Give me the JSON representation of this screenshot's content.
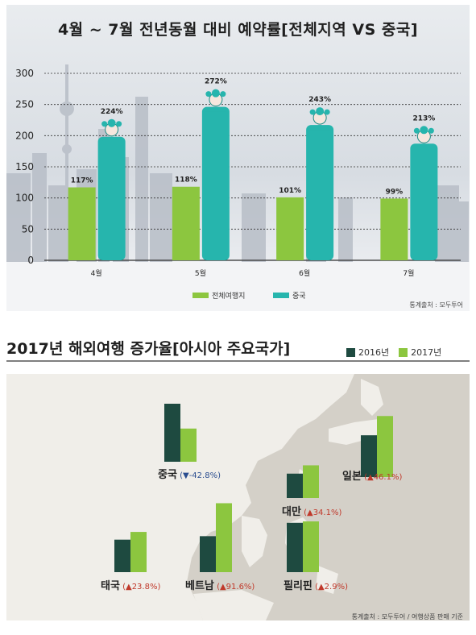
{
  "chart1": {
    "title": "4월 ~ 7월 전년동월 대비 예약률[전체지역 VS 중국]",
    "source": "통계출처 : 모두투어",
    "colors": {
      "all": "#8cc63f",
      "china": "#26b5ad"
    },
    "chart_data": {
      "type": "bar",
      "categories": [
        "4월",
        "5월",
        "6월",
        "7월"
      ],
      "series": [
        {
          "name": "전체여행지",
          "values": [
            117,
            118,
            101,
            99
          ],
          "labels": [
            "117%",
            "118%",
            "101%",
            "99%"
          ]
        },
        {
          "name": "중국",
          "values": [
            224,
            272,
            243,
            213
          ],
          "labels": [
            "224%",
            "272%",
            "243%",
            "213%"
          ]
        }
      ],
      "yticks": [
        "0",
        "50",
        "100",
        "150",
        "200",
        "250",
        "300"
      ],
      "ylim": [
        0,
        300
      ],
      "legend": "bottom"
    }
  },
  "chart2": {
    "title": "2017년 해외여행 증가율[아시아 주요국가]",
    "source": "통계출처 : 모두투어 / 여행상품 판매 기준",
    "colors": {
      "y2016": "#1e4a40",
      "y2017": "#8cc63f"
    },
    "chart_data": {
      "type": "bar",
      "series_names": [
        "2016년",
        "2017년"
      ],
      "countries": [
        {
          "name": "중국",
          "change": "▼-42.8%",
          "values": [
            1.0,
            0.572
          ]
        },
        {
          "name": "일본",
          "change": "▲46.1%",
          "values": [
            1.0,
            1.461
          ]
        },
        {
          "name": "대만",
          "change": "▲34.1%",
          "values": [
            1.0,
            1.341
          ]
        },
        {
          "name": "태국",
          "change": "▲23.8%",
          "values": [
            1.0,
            1.238
          ]
        },
        {
          "name": "베트남",
          "change": "▲91.6%",
          "values": [
            1.0,
            1.916
          ]
        },
        {
          "name": "필리핀",
          "change": "▲2.9%",
          "values": [
            1.0,
            1.029
          ]
        }
      ]
    }
  }
}
